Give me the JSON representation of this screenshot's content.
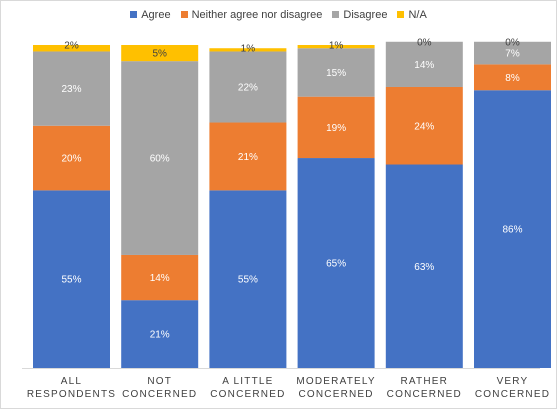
{
  "chart_data": {
    "type": "bar",
    "stacked": true,
    "title": "",
    "xlabel": "",
    "ylabel": "",
    "ylim": [
      0,
      100
    ],
    "legend_position": "top-center",
    "grid": false,
    "categories": [
      [
        "ALL",
        "RESPONDENTS"
      ],
      [
        "NOT",
        "CONCERNED"
      ],
      [
        "A LITTLE",
        "CONCERNED"
      ],
      [
        "MODERATELY",
        "CONCERNED"
      ],
      [
        "RATHER",
        "CONCERNED"
      ],
      [
        "VERY",
        "CONCERNED"
      ]
    ],
    "series": [
      {
        "name": "Agree",
        "color": "#4472C4",
        "values": [
          55,
          21,
          55,
          65,
          63,
          86
        ],
        "labels": [
          "55%",
          "21%",
          "55%",
          "65%",
          "63%",
          "86%"
        ]
      },
      {
        "name": "Neither agree nor disagree",
        "color": "#ED7D31",
        "values": [
          20,
          14,
          21,
          19,
          24,
          8
        ],
        "labels": [
          "20%",
          "14%",
          "21%",
          "19%",
          "24%",
          "8%"
        ]
      },
      {
        "name": "Disagree",
        "color": "#A5A5A5",
        "values": [
          23,
          60,
          22,
          15,
          14,
          7
        ],
        "labels": [
          "23%",
          "60%",
          "22%",
          "15%",
          "14%",
          "7%"
        ]
      },
      {
        "name": "N/A",
        "color": "#FFC000",
        "values": [
          2,
          5,
          1,
          1,
          0,
          0
        ],
        "labels": [
          "2%",
          "5%",
          "1%",
          "1%",
          "0%",
          "0%"
        ]
      }
    ]
  }
}
